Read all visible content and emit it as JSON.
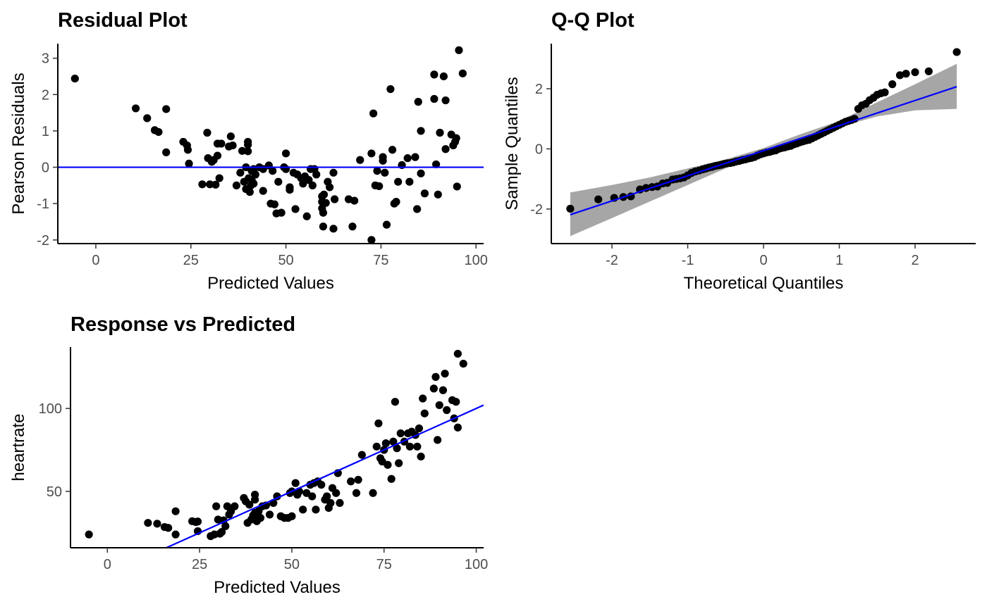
{
  "chart_data": [
    {
      "id": "residual",
      "type": "scatter",
      "title": "Residual Plot",
      "xlabel": "Predicted Values",
      "ylabel": "Pearson Residuals",
      "xlim": [
        -10,
        102
      ],
      "ylim": [
        -2.1,
        3.4
      ],
      "xticks": [
        0,
        25,
        50,
        75,
        100
      ],
      "yticks": [
        -2,
        -1,
        0,
        1,
        2,
        3
      ],
      "grid": false,
      "ref_line": {
        "type": "hline",
        "y": 0,
        "color": "#0000ff"
      },
      "points": [
        [
          -5.5,
          2.44
        ],
        [
          10.5,
          1.62
        ],
        [
          13.5,
          1.35
        ],
        [
          15.5,
          1.02
        ],
        [
          16.5,
          0.97
        ],
        [
          18.5,
          1.6
        ],
        [
          18.5,
          0.41
        ],
        [
          23,
          0.7
        ],
        [
          24,
          0.6
        ],
        [
          24.2,
          0.48
        ],
        [
          24.5,
          0.1
        ],
        [
          28,
          -0.47
        ],
        [
          29.3,
          0.95
        ],
        [
          29.5,
          0.25
        ],
        [
          30,
          -0.47
        ],
        [
          30.5,
          0.15
        ],
        [
          31,
          0.2
        ],
        [
          31.5,
          -0.48
        ],
        [
          32,
          0.32
        ],
        [
          32.5,
          -0.3
        ],
        [
          32,
          0.65
        ],
        [
          33,
          0.65
        ],
        [
          35,
          0.57
        ],
        [
          35.5,
          0.85
        ],
        [
          36,
          0.6
        ],
        [
          37,
          -0.5
        ],
        [
          38,
          -0.15
        ],
        [
          38.5,
          0.45
        ],
        [
          39,
          -0.4
        ],
        [
          39.5,
          0.0
        ],
        [
          39.5,
          -0.6
        ],
        [
          40,
          0.7
        ],
        [
          40,
          0.62
        ],
        [
          40,
          0.44
        ],
        [
          40.2,
          -0.3
        ],
        [
          40.5,
          -0.68
        ],
        [
          40.8,
          -0.5
        ],
        [
          41,
          -0.35
        ],
        [
          41,
          -0.1
        ],
        [
          41.5,
          -0.45
        ],
        [
          41.5,
          -0.05
        ],
        [
          42,
          -0.2
        ],
        [
          43,
          0.0
        ],
        [
          44,
          -0.65
        ],
        [
          44,
          -0.05
        ],
        [
          45.5,
          0.05
        ],
        [
          46,
          -1.0
        ],
        [
          46.5,
          -0.1
        ],
        [
          47,
          -1.02
        ],
        [
          47.5,
          -1.27
        ],
        [
          48,
          -0.4
        ],
        [
          48.8,
          -1.25
        ],
        [
          49.5,
          0.0
        ],
        [
          50,
          0.38
        ],
        [
          50,
          -0.05
        ],
        [
          51,
          -0.55
        ],
        [
          51,
          -0.62
        ],
        [
          52,
          -0.15
        ],
        [
          52.5,
          -1.15
        ],
        [
          53,
          -0.2
        ],
        [
          54,
          -0.3
        ],
        [
          54.5,
          -0.45
        ],
        [
          55,
          -0.25
        ],
        [
          55.5,
          -1.35
        ],
        [
          56,
          -0.35
        ],
        [
          56.5,
          -0.05
        ],
        [
          57,
          -0.5
        ],
        [
          57.5,
          -0.05
        ],
        [
          58,
          -0.2
        ],
        [
          59.5,
          -0.8
        ],
        [
          59.5,
          -0.95
        ],
        [
          59.5,
          -1.13
        ],
        [
          59.8,
          -1.25
        ],
        [
          59.8,
          -1.63
        ],
        [
          60,
          -0.75
        ],
        [
          60.5,
          -0.98
        ],
        [
          61,
          -0.4
        ],
        [
          61.5,
          -0.55
        ],
        [
          62.5,
          -0.15
        ],
        [
          62.5,
          -1.69
        ],
        [
          62.8,
          -0.88
        ],
        [
          66.5,
          -0.88
        ],
        [
          67.5,
          -1.63
        ],
        [
          68,
          -0.92
        ],
        [
          69.5,
          0.2
        ],
        [
          72.5,
          -2.0
        ],
        [
          72.5,
          0.38
        ],
        [
          73,
          1.48
        ],
        [
          73.5,
          -0.5
        ],
        [
          74,
          -0.1
        ],
        [
          74.5,
          -0.52
        ],
        [
          75.5,
          0.28
        ],
        [
          75.5,
          0.18
        ],
        [
          76,
          -0.15
        ],
        [
          76.5,
          -1.58
        ],
        [
          77.5,
          2.15
        ],
        [
          78,
          0.48
        ],
        [
          78.5,
          -1.0
        ],
        [
          79,
          -0.95
        ],
        [
          79.5,
          -0.4
        ],
        [
          80.5,
          0.06
        ],
        [
          82,
          0.25
        ],
        [
          82.5,
          -0.4
        ],
        [
          84,
          0.28
        ],
        [
          84.5,
          -1.15
        ],
        [
          84.8,
          1.8
        ],
        [
          85.5,
          1.0
        ],
        [
          85.5,
          -0.17
        ],
        [
          86.5,
          -0.72
        ],
        [
          89,
          2.55
        ],
        [
          89,
          1.88
        ],
        [
          89.5,
          0.08
        ],
        [
          90,
          -0.75
        ],
        [
          90.5,
          0.95
        ],
        [
          91.5,
          2.5
        ],
        [
          92,
          1.84
        ],
        [
          92,
          0.5
        ],
        [
          93.5,
          0.9
        ],
        [
          94,
          0.6
        ],
        [
          94.5,
          0.7
        ],
        [
          94.8,
          0.8
        ],
        [
          95,
          -0.53
        ],
        [
          95.5,
          3.22
        ],
        [
          96.5,
          2.58
        ]
      ]
    },
    {
      "id": "qq",
      "type": "scatter",
      "title": "Q-Q Plot",
      "xlabel": "Theoretical Quantiles",
      "ylabel": "Sample Quantiles",
      "xlim": [
        -2.8,
        2.8
      ],
      "ylim": [
        -3.15,
        3.5
      ],
      "xticks": [
        -2,
        -1,
        0,
        1,
        2
      ],
      "yticks": [
        -2,
        0,
        2
      ],
      "grid": false,
      "ref_line": {
        "type": "line",
        "intercept": -0.06,
        "slope": 0.835,
        "color": "#0000ff"
      },
      "band": {
        "x": [
          -2.55,
          -2.0,
          -1.5,
          -1.0,
          -0.5,
          0.0,
          0.5,
          1.0,
          1.5,
          2.0,
          2.55
        ],
        "lower": [
          -2.9,
          -2.3,
          -1.75,
          -1.2,
          -0.65,
          -0.13,
          0.33,
          0.73,
          1.08,
          1.28,
          1.33
        ],
        "upper": [
          -1.45,
          -1.2,
          -0.95,
          -0.65,
          -0.35,
          0.03,
          0.5,
          0.93,
          1.55,
          2.15,
          2.83
        ]
      },
      "points": [
        [
          -2.55,
          -1.99
        ],
        [
          -2.18,
          -1.68
        ],
        [
          -1.97,
          -1.63
        ],
        [
          -1.85,
          -1.6
        ],
        [
          -1.75,
          -1.58
        ],
        [
          -1.63,
          -1.35
        ],
        [
          -1.55,
          -1.3
        ],
        [
          -1.47,
          -1.27
        ],
        [
          -1.4,
          -1.25
        ],
        [
          -1.33,
          -1.15
        ],
        [
          -1.27,
          -1.13
        ],
        [
          -1.2,
          -1.02
        ],
        [
          -1.15,
          -1.0
        ],
        [
          -1.1,
          -0.98
        ],
        [
          -1.05,
          -0.95
        ],
        [
          -1.0,
          -0.88
        ],
        [
          -0.95,
          -0.8
        ],
        [
          -0.9,
          -0.75
        ],
        [
          -0.85,
          -0.72
        ],
        [
          -0.8,
          -0.68
        ],
        [
          -0.76,
          -0.65
        ],
        [
          -0.72,
          -0.62
        ],
        [
          -0.68,
          -0.6
        ],
        [
          -0.64,
          -0.57
        ],
        [
          -0.6,
          -0.55
        ],
        [
          -0.56,
          -0.53
        ],
        [
          -0.52,
          -0.5
        ],
        [
          -0.48,
          -0.48
        ],
        [
          -0.44,
          -0.47
        ],
        [
          -0.4,
          -0.45
        ],
        [
          -0.36,
          -0.42
        ],
        [
          -0.32,
          -0.4
        ],
        [
          -0.28,
          -0.37
        ],
        [
          -0.24,
          -0.35
        ],
        [
          -0.2,
          -0.32
        ],
        [
          -0.16,
          -0.3
        ],
        [
          -0.12,
          -0.27
        ],
        [
          -0.08,
          -0.22
        ],
        [
          -0.04,
          -0.18
        ],
        [
          0.0,
          -0.15
        ],
        [
          0.04,
          -0.12
        ],
        [
          0.08,
          -0.1
        ],
        [
          0.12,
          -0.07
        ],
        [
          0.16,
          -0.05
        ],
        [
          0.2,
          0.0
        ],
        [
          0.24,
          0.03
        ],
        [
          0.28,
          0.05
        ],
        [
          0.32,
          0.08
        ],
        [
          0.36,
          0.1
        ],
        [
          0.4,
          0.15
        ],
        [
          0.44,
          0.18
        ],
        [
          0.48,
          0.22
        ],
        [
          0.52,
          0.25
        ],
        [
          0.56,
          0.28
        ],
        [
          0.6,
          0.3
        ],
        [
          0.64,
          0.35
        ],
        [
          0.68,
          0.4
        ],
        [
          0.72,
          0.45
        ],
        [
          0.76,
          0.5
        ],
        [
          0.8,
          0.55
        ],
        [
          0.84,
          0.6
        ],
        [
          0.88,
          0.65
        ],
        [
          0.92,
          0.7
        ],
        [
          0.96,
          0.75
        ],
        [
          1.0,
          0.8
        ],
        [
          1.04,
          0.85
        ],
        [
          1.08,
          0.9
        ],
        [
          1.12,
          0.93
        ],
        [
          1.16,
          0.96
        ],
        [
          1.2,
          1.0
        ],
        [
          1.25,
          1.33
        ],
        [
          1.3,
          1.45
        ],
        [
          1.35,
          1.5
        ],
        [
          1.4,
          1.62
        ],
        [
          1.45,
          1.7
        ],
        [
          1.5,
          1.8
        ],
        [
          1.55,
          1.85
        ],
        [
          1.6,
          1.88
        ],
        [
          1.7,
          2.15
        ],
        [
          1.8,
          2.45
        ],
        [
          1.88,
          2.5
        ],
        [
          2.0,
          2.55
        ],
        [
          2.18,
          2.58
        ],
        [
          2.55,
          3.22
        ]
      ]
    },
    {
      "id": "response",
      "type": "scatter",
      "title": "Response vs Predicted",
      "xlabel": "Predicted Values",
      "ylabel": "heartrate",
      "xlim": [
        -10,
        102
      ],
      "ylim": [
        16,
        137
      ],
      "xticks": [
        0,
        25,
        50,
        75,
        100
      ],
      "yticks": [
        50,
        100
      ],
      "grid": false,
      "ref_line": {
        "type": "line",
        "intercept": 0,
        "slope": 1,
        "color": "#0000ff"
      },
      "points": [
        [
          -5,
          24
        ],
        [
          11,
          31
        ],
        [
          13.5,
          30.5
        ],
        [
          15.5,
          28.5
        ],
        [
          16.5,
          28
        ],
        [
          18.5,
          38
        ],
        [
          18.5,
          24
        ],
        [
          23,
          32
        ],
        [
          24,
          31.5
        ],
        [
          24.5,
          31.8
        ],
        [
          24.5,
          26
        ],
        [
          28,
          23
        ],
        [
          29,
          24
        ],
        [
          29.5,
          41
        ],
        [
          30,
          33
        ],
        [
          30.5,
          24.5
        ],
        [
          31,
          25.5
        ],
        [
          31.5,
          32.5
        ],
        [
          32,
          29
        ],
        [
          32.5,
          41
        ],
        [
          33,
          36
        ],
        [
          33.5,
          38
        ],
        [
          34.5,
          41
        ],
        [
          37,
          46
        ],
        [
          37.5,
          44
        ],
        [
          38,
          31
        ],
        [
          38.5,
          42
        ],
        [
          39,
          33
        ],
        [
          39.5,
          35.5
        ],
        [
          40,
          45
        ],
        [
          40,
          48
        ],
        [
          40,
          37
        ],
        [
          40.5,
          32
        ],
        [
          41,
          38
        ],
        [
          41.5,
          34
        ],
        [
          42,
          41
        ],
        [
          43,
          41.5
        ],
        [
          44,
          36
        ],
        [
          45,
          43
        ],
        [
          46,
          47
        ],
        [
          47,
          35
        ],
        [
          48,
          34
        ],
        [
          49,
          34
        ],
        [
          49.5,
          49
        ],
        [
          50,
          50
        ],
        [
          50,
          35
        ],
        [
          51,
          55
        ],
        [
          51.5,
          48
        ],
        [
          52,
          50
        ],
        [
          53,
          39
        ],
        [
          54,
          49
        ],
        [
          55,
          54
        ],
        [
          55.5,
          47
        ],
        [
          56,
          55
        ],
        [
          56.5,
          39
        ],
        [
          57,
          56
        ],
        [
          58,
          54
        ],
        [
          59,
          45
        ],
        [
          59.5,
          47
        ],
        [
          60,
          40
        ],
        [
          60.5,
          43
        ],
        [
          61,
          52
        ],
        [
          62,
          49
        ],
        [
          62.5,
          61
        ],
        [
          63,
          43
        ],
        [
          66,
          56
        ],
        [
          67.5,
          49
        ],
        [
          68,
          57
        ],
        [
          69,
          72
        ],
        [
          72,
          49
        ],
        [
          73,
          77
        ],
        [
          73.5,
          91
        ],
        [
          74,
          70
        ],
        [
          74.5,
          68
        ],
        [
          75,
          75
        ],
        [
          75.5,
          79
        ],
        [
          76,
          66
        ],
        [
          77,
          57.5
        ],
        [
          77.5,
          80
        ],
        [
          78,
          104
        ],
        [
          78.5,
          76
        ],
        [
          79,
          67
        ],
        [
          79.5,
          85
        ],
        [
          80.5,
          80
        ],
        [
          81.5,
          85
        ],
        [
          82,
          77
        ],
        [
          82.5,
          86
        ],
        [
          83.5,
          84
        ],
        [
          84,
          77
        ],
        [
          84.5,
          88
        ],
        [
          85,
          71
        ],
        [
          85.5,
          106
        ],
        [
          86,
          97
        ],
        [
          88.5,
          112
        ],
        [
          89,
          119
        ],
        [
          89.5,
          81
        ],
        [
          90,
          102
        ],
        [
          91,
          111
        ],
        [
          91.5,
          121
        ],
        [
          92,
          99
        ],
        [
          93.5,
          105
        ],
        [
          94,
          94
        ],
        [
          94.5,
          104
        ],
        [
          95,
          88.5
        ],
        [
          95,
          133
        ],
        [
          96.5,
          127
        ]
      ]
    }
  ]
}
